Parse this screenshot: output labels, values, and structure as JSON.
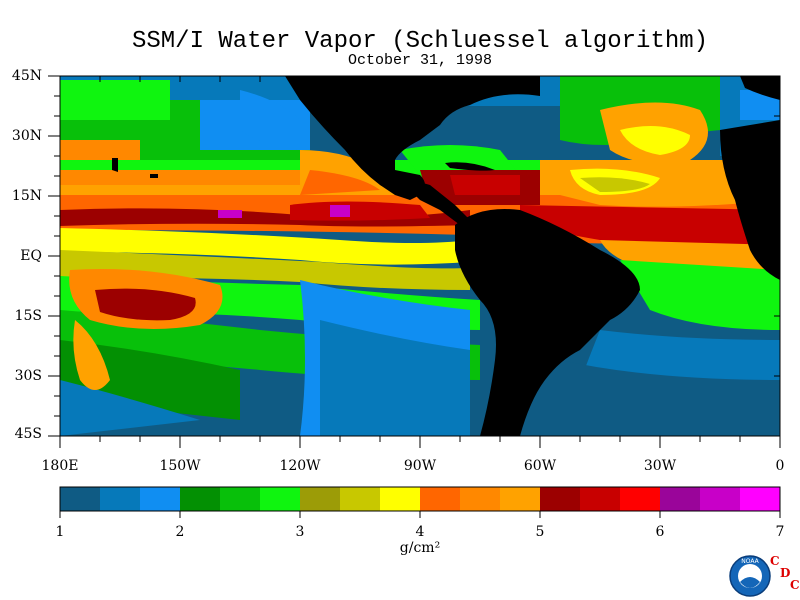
{
  "title": "SSM/I Water Vapor (Schluessel algorithm)",
  "subtitle": "October 31, 1998",
  "lat_labels": [
    "45N",
    "30N",
    "15N",
    "EQ",
    "15S",
    "30S",
    "45S"
  ],
  "lon_labels": [
    "180E",
    "150W",
    "120W",
    "90W",
    "60W",
    "30W",
    "0"
  ],
  "colorbar": {
    "unit": "g/cm²",
    "tick_labels": [
      "1",
      "2",
      "3",
      "4",
      "5",
      "6",
      "7"
    ],
    "colors": [
      "#0f5b84",
      "#0679ba",
      "#108ef2",
      "#039003",
      "#08c00a",
      "#0ff50f",
      "#9c9c07",
      "#c8c800",
      "#ffff00",
      "#ff6600",
      "#ff8800",
      "#ffa200",
      "#9c0000",
      "#c80000",
      "#ff0000",
      "#9a059a",
      "#c800c8",
      "#ff00ff"
    ]
  },
  "logo": {
    "text": "NOAA",
    "letters": [
      "C",
      "D",
      "C"
    ]
  }
}
